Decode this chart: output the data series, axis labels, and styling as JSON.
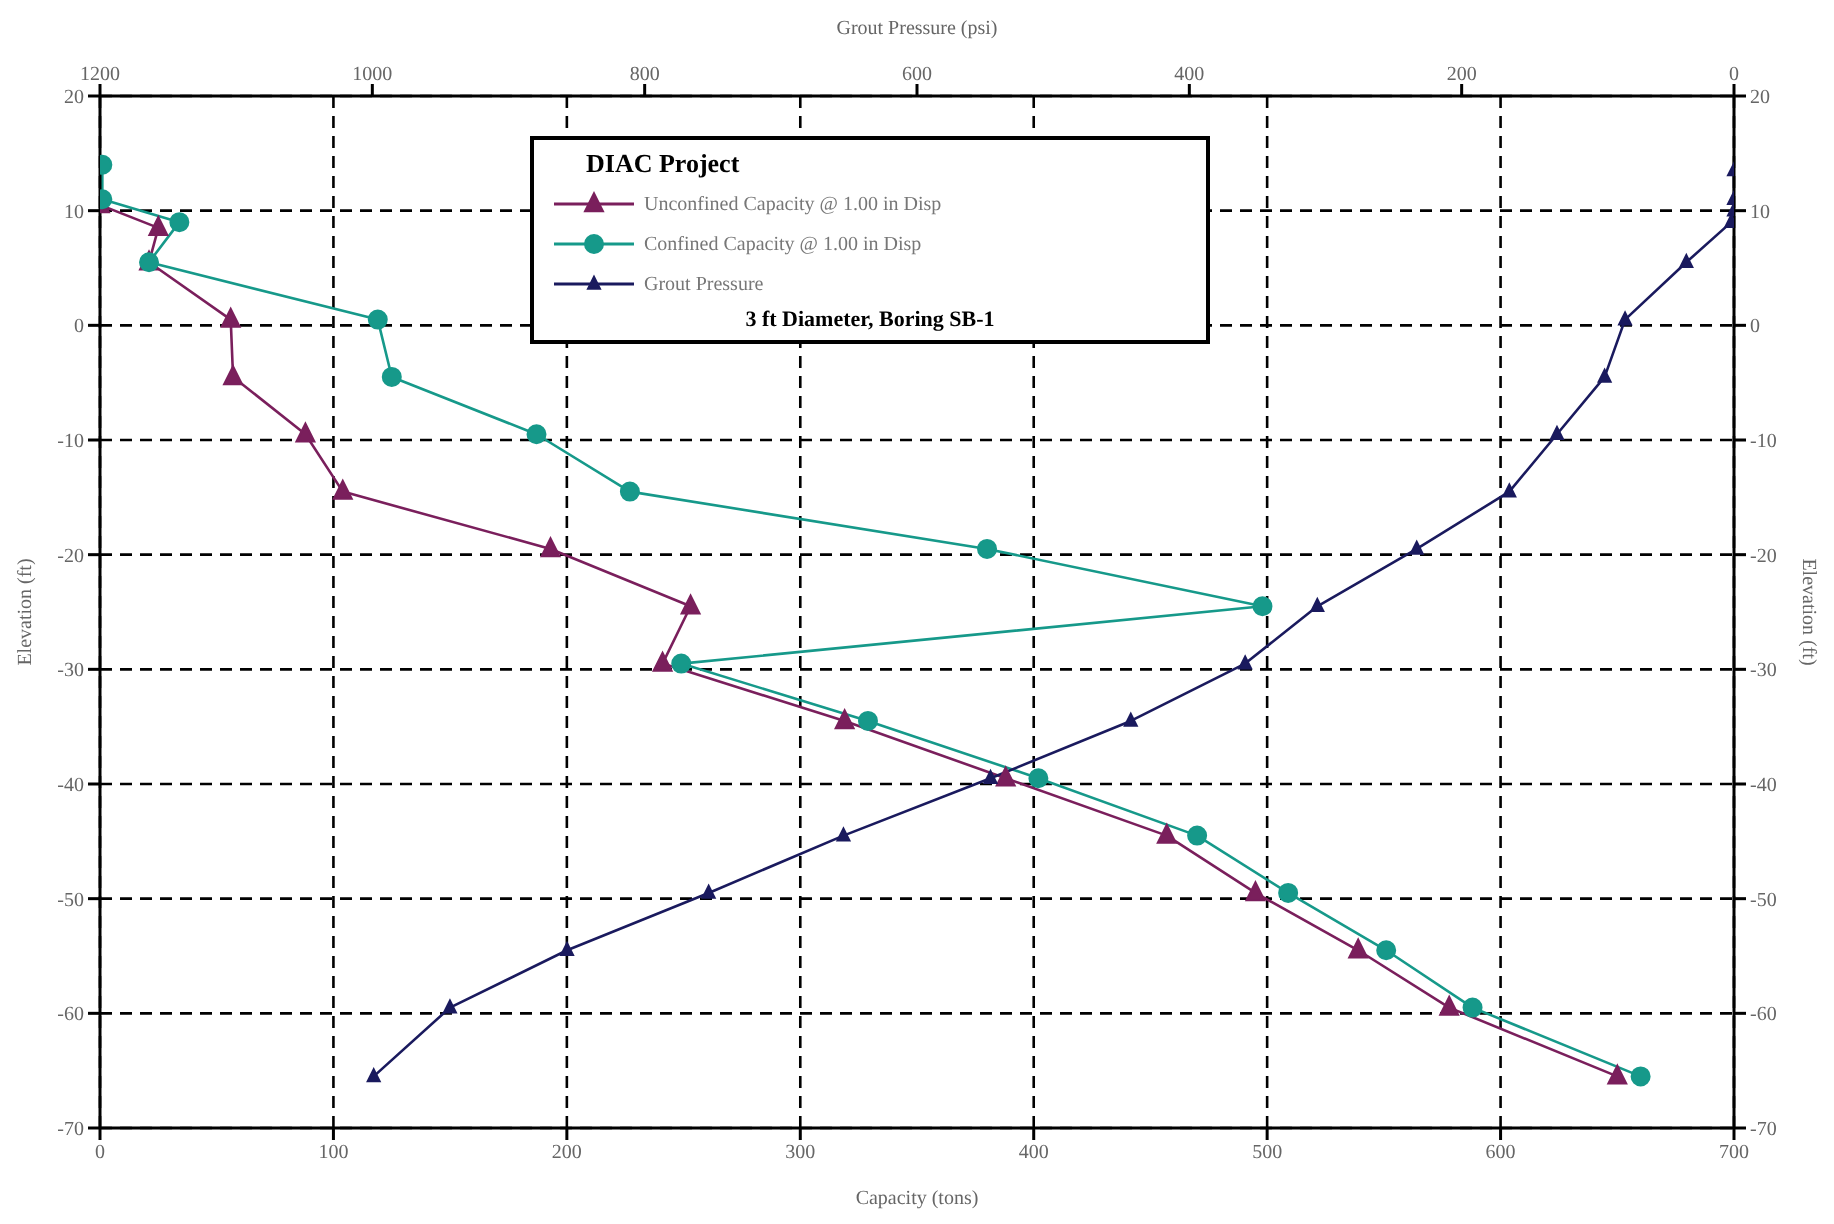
{
  "chart_data": {
    "type": "line",
    "subtitle": "3 ft Diameter, Boring SB-1",
    "legend_title": "DIAC Project",
    "xlabel": "Capacity (tons)",
    "x2label": "Grout Pressure (psi)",
    "ylabel": "Elevation (ft)",
    "y2label": "Elevation (ft)",
    "xlim": [
      0,
      700
    ],
    "xticks": [
      0,
      100,
      200,
      300,
      400,
      500,
      600,
      700
    ],
    "x2lim": [
      1200,
      0
    ],
    "x2ticks": [
      1200,
      1000,
      800,
      600,
      400,
      200,
      0
    ],
    "ylim": [
      -70,
      20
    ],
    "yticks": [
      -70,
      -60,
      -50,
      -40,
      -30,
      -20,
      -10,
      0,
      10,
      20
    ],
    "y2lim": [
      -70,
      20
    ],
    "y2ticks": [
      -70,
      -60,
      -50,
      -40,
      -30,
      -20,
      -10,
      0,
      10,
      20
    ],
    "grid": true,
    "legend": "top",
    "line_style": "solid",
    "series": [
      {
        "name": "Unconfined Capacity @ 1.00 in Disp",
        "color": "#7a1f5c",
        "marker": "triangle",
        "x": [
          0,
          25,
          21,
          56,
          57,
          88,
          104,
          193,
          253,
          241,
          319,
          388,
          457,
          495,
          539,
          578,
          650
        ],
        "values": [
          10.5,
          8.5,
          5.5,
          0.5,
          -4.5,
          -9.5,
          -14.5,
          -19.5,
          -24.5,
          -29.5,
          -34.5,
          -39.5,
          -44.5,
          -49.5,
          -54.5,
          -59.5,
          -65.5
        ]
      },
      {
        "name": "Confined Capacity @ 1.00 in Disp",
        "color": "#16998a",
        "marker": "circle",
        "x": [
          1,
          1,
          34,
          21,
          119,
          125,
          187,
          227,
          380,
          498,
          249,
          329,
          402,
          470,
          509,
          551,
          588,
          660
        ],
        "values": [
          14,
          11,
          9,
          5.5,
          0.5,
          -4.5,
          -9.5,
          -14.5,
          -19.5,
          -24.5,
          -29.5,
          -34.5,
          -39.5,
          -44.5,
          -49.5,
          -54.5,
          -59.5,
          -65.5
        ]
      },
      {
        "name": "Grout Pressure",
        "color": "#1a1a5e",
        "marker": "triangle",
        "axis": "x2",
        "x": [
          0,
          0,
          0,
          2,
          35,
          80,
          95,
          130,
          165,
          233,
          306,
          359,
          443,
          546,
          654,
          753,
          857,
          943,
          999
        ],
        "values": [
          13.5,
          11,
          10,
          9,
          5.5,
          0.5,
          -4.5,
          -9.5,
          -14.5,
          -19.5,
          -24.5,
          -29.5,
          -34.5,
          -39.5,
          -44.5,
          -49.5,
          -54.5,
          -59.5,
          -65.5
        ]
      }
    ]
  }
}
